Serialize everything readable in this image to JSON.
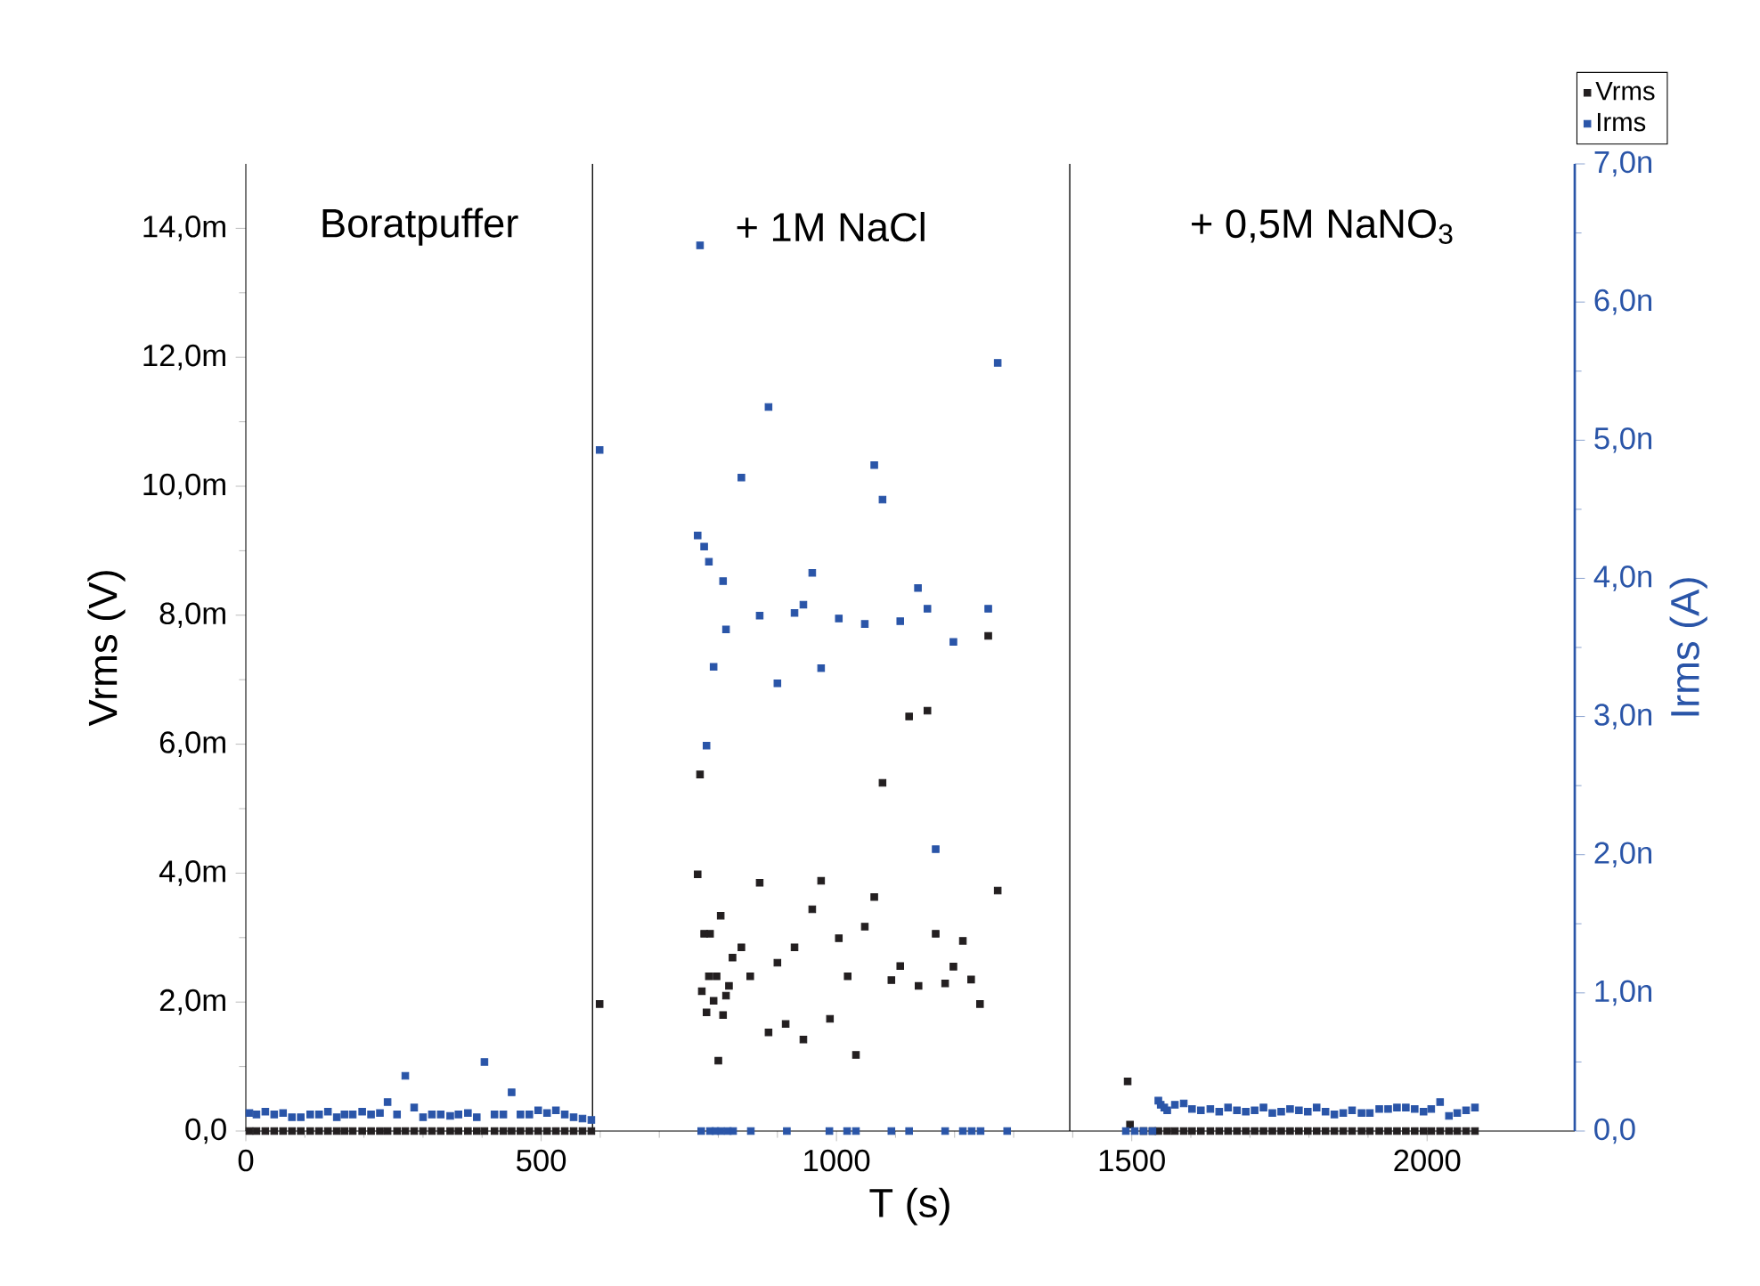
{
  "chart_data": {
    "type": "scatter",
    "xlabel": "T (s)",
    "ylabel": "Vrms (V)",
    "y2label": "Irms (A)",
    "xlim": [
      0,
      2250
    ],
    "xticks": [
      0,
      500,
      1000,
      1500,
      2000
    ],
    "ylim": [
      0,
      15
    ],
    "yticks": [
      {
        "value": 0,
        "label": "0,0"
      },
      {
        "value": 2,
        "label": "2,0m"
      },
      {
        "value": 4,
        "label": "4,0m"
      },
      {
        "value": 6,
        "label": "6,0m"
      },
      {
        "value": 8,
        "label": "8,0m"
      },
      {
        "value": 10,
        "label": "10,0m"
      },
      {
        "value": 12,
        "label": "12,0m"
      },
      {
        "value": 14,
        "label": "14,0m"
      }
    ],
    "y2lim": [
      0,
      7
    ],
    "y2ticks": [
      {
        "value": 0,
        "label": "0,0"
      },
      {
        "value": 1,
        "label": "1,0n"
      },
      {
        "value": 2,
        "label": "2,0n"
      },
      {
        "value": 3,
        "label": "3,0n"
      },
      {
        "value": 4,
        "label": "4,0n"
      },
      {
        "value": 5,
        "label": "5,0n"
      },
      {
        "value": 6,
        "label": "6,0n"
      },
      {
        "value": 7,
        "label": "7,0n"
      }
    ],
    "marker": "square",
    "legend": "top right",
    "grid": false,
    "ref_lines": [
      {
        "axis": "x",
        "value": 587,
        "color": "#000000"
      },
      {
        "axis": "x",
        "value": 1395,
        "color": "#000000"
      }
    ],
    "annotations": [
      "Boratpuffer",
      "+ 1M NaCl",
      "+ 0,5M NaNO$_{3}$"
    ],
    "series": [
      {
        "name": "Vrms",
        "color": "#231f20",
        "x": [
          6,
          18,
          33,
          48,
          63,
          78,
          93,
          109,
          124,
          139,
          154,
          167,
          181,
          197,
          212,
          227,
          240,
          256,
          270,
          285,
          300,
          315,
          330,
          346,
          360,
          376,
          391,
          404,
          421,
          436,
          450,
          465,
          480,
          495,
          510,
          525,
          540,
          555,
          570,
          585,
          599,
          765,
          769,
          772,
          776,
          780,
          784,
          786,
          792,
          797,
          800,
          804,
          808,
          813,
          818,
          824,
          839,
          854,
          870,
          885,
          900,
          914,
          929,
          944,
          959,
          974,
          989,
          1004,
          1019,
          1033,
          1048,
          1064,
          1078,
          1093,
          1108,
          1123,
          1139,
          1154,
          1168,
          1184,
          1198,
          1214,
          1228,
          1243,
          1257,
          1273,
          1493,
          1497,
          1520,
          1535,
          1545,
          1560,
          1573,
          1588,
          1602,
          1617,
          1633,
          1648,
          1663,
          1678,
          1693,
          1708,
          1723,
          1738,
          1753,
          1768,
          1783,
          1798,
          1813,
          1828,
          1843,
          1858,
          1873,
          1889,
          1903,
          1919,
          1934,
          1949,
          1964,
          1979,
          1994,
          2007,
          2022,
          2037,
          2051,
          2066,
          2081
        ],
        "values": [
          0,
          0,
          0,
          0,
          0,
          0,
          0,
          0,
          0,
          0,
          0,
          0,
          0,
          0,
          0,
          0,
          0,
          0,
          0,
          0,
          0,
          0,
          0,
          0,
          0,
          0,
          0,
          0,
          0,
          0,
          0,
          0,
          0,
          0,
          0,
          0,
          0,
          0,
          0,
          0,
          1.97,
          3.98,
          5.53,
          2.17,
          3.06,
          1.84,
          2.4,
          3.06,
          2.02,
          2.4,
          1.09,
          3.34,
          1.8,
          2.1,
          2.25,
          2.69,
          2.85,
          2.4,
          3.85,
          1.53,
          2.61,
          1.66,
          2.85,
          1.42,
          3.44,
          3.88,
          1.74,
          2.99,
          2.4,
          1.18,
          3.17,
          3.63,
          5.4,
          2.34,
          2.56,
          6.43,
          2.25,
          6.52,
          3.06,
          2.29,
          2.55,
          2.95,
          2.35,
          1.97,
          7.68,
          3.73,
          0.77,
          0.1,
          0,
          0,
          0,
          0,
          0,
          0,
          0,
          0,
          0,
          0,
          0,
          0,
          0,
          0,
          0,
          0,
          0,
          0,
          0,
          0,
          0,
          0,
          0,
          0,
          0,
          0,
          0,
          0,
          0,
          0,
          0,
          0,
          0,
          0,
          0,
          0,
          0,
          0,
          0
        ]
      },
      {
        "name": "Irms",
        "color": "#2a55a8",
        "axis": "y2",
        "x": [
          6,
          18,
          33,
          48,
          63,
          78,
          93,
          109,
          124,
          139,
          154,
          167,
          181,
          197,
          212,
          227,
          240,
          256,
          270,
          285,
          300,
          315,
          330,
          346,
          360,
          376,
          391,
          404,
          421,
          436,
          450,
          465,
          480,
          495,
          510,
          525,
          540,
          555,
          570,
          585,
          599,
          765,
          769,
          771,
          776,
          780,
          784,
          786,
          792,
          795,
          804,
          808,
          813,
          816,
          825,
          839,
          855,
          870,
          885,
          900,
          916,
          929,
          944,
          959,
          974,
          988,
          1004,
          1018,
          1033,
          1048,
          1064,
          1078,
          1093,
          1108,
          1123,
          1138,
          1154,
          1168,
          1184,
          1198,
          1214,
          1229,
          1244,
          1257,
          1273,
          1289,
          1490,
          1505,
          1520,
          1535,
          1545,
          1549,
          1555,
          1560,
          1573,
          1588,
          1602,
          1617,
          1633,
          1648,
          1663,
          1678,
          1693,
          1708,
          1723,
          1738,
          1753,
          1768,
          1783,
          1798,
          1813,
          1828,
          1843,
          1858,
          1873,
          1889,
          1903,
          1919,
          1934,
          1949,
          1964,
          1979,
          1994,
          2007,
          2022,
          2037,
          2051,
          2066,
          2081
        ],
        "values": [
          0.13,
          0.12,
          0.14,
          0.12,
          0.13,
          0.1,
          0.1,
          0.12,
          0.12,
          0.14,
          0.1,
          0.12,
          0.12,
          0.14,
          0.12,
          0.13,
          0.21,
          0.12,
          0.4,
          0.17,
          0.1,
          0.12,
          0.12,
          0.11,
          0.12,
          0.13,
          0.1,
          0.5,
          0.12,
          0.12,
          0.28,
          0.12,
          0.12,
          0.15,
          0.13,
          0.15,
          0.12,
          0.1,
          0.09,
          0.08,
          4.93,
          4.31,
          6.41,
          0,
          4.23,
          2.79,
          4.12,
          0,
          3.36,
          0,
          0,
          3.98,
          3.63,
          0,
          0,
          4.73,
          0,
          3.73,
          5.24,
          3.24,
          0,
          3.75,
          3.81,
          4.04,
          3.35,
          0,
          3.71,
          0,
          0,
          3.67,
          4.82,
          4.57,
          0,
          3.69,
          0,
          3.93,
          3.78,
          2.04,
          0,
          3.54,
          0,
          0,
          0,
          3.78,
          5.56,
          0,
          0,
          0,
          0,
          0,
          0.22,
          0.19,
          0.17,
          0.15,
          0.19,
          0.2,
          0.16,
          0.15,
          0.16,
          0.14,
          0.17,
          0.15,
          0.14,
          0.15,
          0.17,
          0.13,
          0.14,
          0.16,
          0.15,
          0.14,
          0.17,
          0.14,
          0.12,
          0.13,
          0.15,
          0.13,
          0.13,
          0.16,
          0.16,
          0.17,
          0.17,
          0.16,
          0.14,
          0.16,
          0.21,
          0.11,
          0.13,
          0.15,
          0.17
        ]
      }
    ]
  }
}
